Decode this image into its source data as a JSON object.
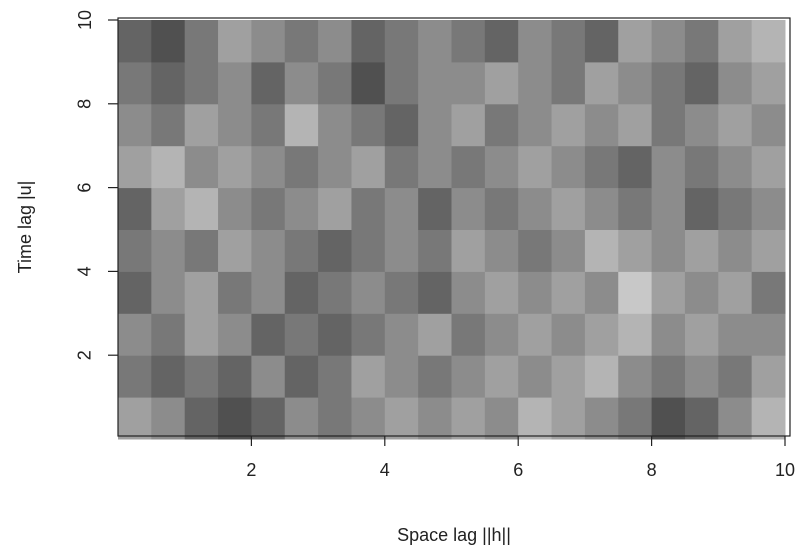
{
  "chart_data": {
    "type": "heatmap",
    "xlabel": "Space lag  ||h||",
    "ylabel": "Time lag  |u|",
    "xlim": [
      0,
      10
    ],
    "ylim": [
      0,
      10
    ],
    "xticks": [
      2,
      4,
      6,
      8,
      10
    ],
    "yticks": [
      2,
      4,
      6,
      8,
      10
    ],
    "z": [
      [
        0.6,
        0.5,
        0.3,
        0.2,
        0.3,
        0.5,
        0.4,
        0.5,
        0.6,
        0.5,
        0.6,
        0.5,
        0.7,
        0.6,
        0.5,
        0.4,
        0.2,
        0.3,
        0.5,
        0.7
      ],
      [
        0.4,
        0.3,
        0.4,
        0.3,
        0.5,
        0.3,
        0.4,
        0.6,
        0.5,
        0.4,
        0.5,
        0.6,
        0.5,
        0.6,
        0.7,
        0.5,
        0.4,
        0.5,
        0.4,
        0.6
      ],
      [
        0.5,
        0.4,
        0.6,
        0.5,
        0.3,
        0.4,
        0.3,
        0.4,
        0.5,
        0.6,
        0.4,
        0.5,
        0.6,
        0.5,
        0.6,
        0.7,
        0.5,
        0.6,
        0.5,
        0.5
      ],
      [
        0.3,
        0.5,
        0.6,
        0.4,
        0.5,
        0.3,
        0.4,
        0.5,
        0.4,
        0.3,
        0.5,
        0.6,
        0.5,
        0.6,
        0.5,
        0.8,
        0.6,
        0.5,
        0.6,
        0.4
      ],
      [
        0.4,
        0.5,
        0.4,
        0.6,
        0.5,
        0.4,
        0.3,
        0.4,
        0.5,
        0.4,
        0.6,
        0.5,
        0.4,
        0.5,
        0.7,
        0.6,
        0.5,
        0.6,
        0.5,
        0.6
      ],
      [
        0.3,
        0.6,
        0.7,
        0.5,
        0.4,
        0.5,
        0.6,
        0.4,
        0.5,
        0.3,
        0.5,
        0.4,
        0.5,
        0.6,
        0.5,
        0.4,
        0.5,
        0.3,
        0.4,
        0.5
      ],
      [
        0.6,
        0.7,
        0.5,
        0.6,
        0.5,
        0.4,
        0.5,
        0.6,
        0.4,
        0.5,
        0.4,
        0.5,
        0.6,
        0.5,
        0.4,
        0.3,
        0.5,
        0.4,
        0.5,
        0.6
      ],
      [
        0.5,
        0.4,
        0.6,
        0.5,
        0.4,
        0.7,
        0.5,
        0.4,
        0.3,
        0.5,
        0.6,
        0.4,
        0.5,
        0.6,
        0.5,
        0.6,
        0.4,
        0.5,
        0.6,
        0.5
      ],
      [
        0.4,
        0.3,
        0.4,
        0.5,
        0.3,
        0.5,
        0.4,
        0.2,
        0.4,
        0.5,
        0.5,
        0.6,
        0.5,
        0.4,
        0.6,
        0.5,
        0.4,
        0.3,
        0.5,
        0.6
      ],
      [
        0.3,
        0.2,
        0.4,
        0.6,
        0.5,
        0.4,
        0.5,
        0.3,
        0.4,
        0.5,
        0.4,
        0.3,
        0.5,
        0.4,
        0.3,
        0.6,
        0.5,
        0.4,
        0.6,
        0.7
      ]
    ]
  }
}
